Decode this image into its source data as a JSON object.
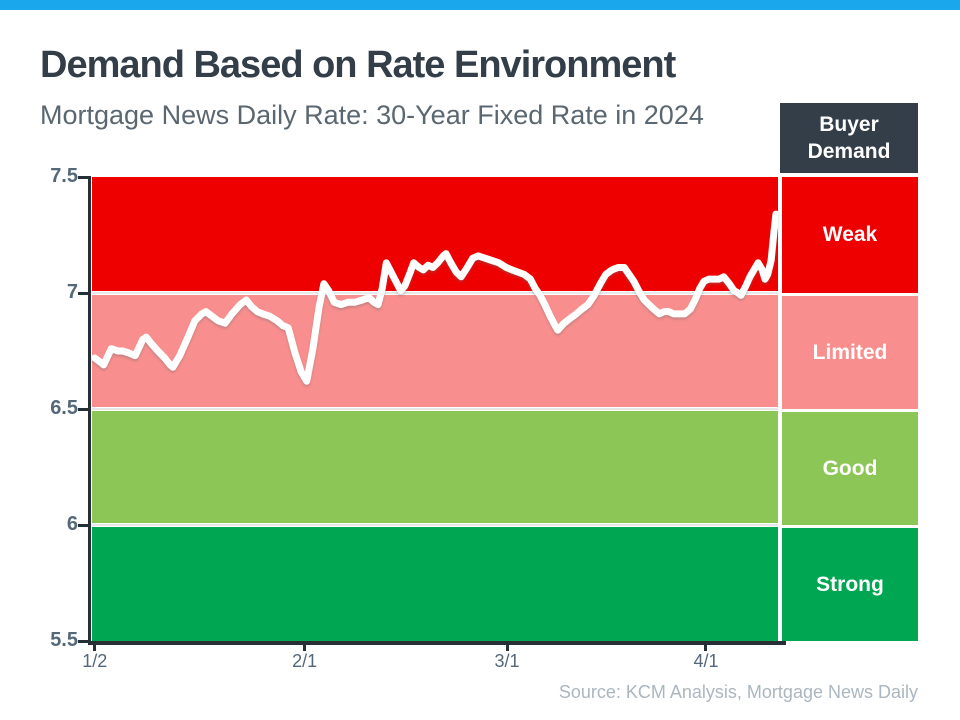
{
  "header": {
    "title": "Demand Based on Rate Environment",
    "subtitle": "Mortgage News Daily Rate: 30-Year Fixed Rate in 2024"
  },
  "legend": {
    "header": "Buyer Demand",
    "header_bg": "#333E48"
  },
  "footer": {
    "source": "Source: KCM Analysis, Mortgage News Daily"
  },
  "colors": {
    "top_bar": "#1AA7EC",
    "title_text": "#333E48",
    "subtitle_text": "#5B6770",
    "axis": "#262F36",
    "tick_label": "#55677A",
    "source_text": "#ABB6BF",
    "line": "#FFFFFF"
  },
  "chart_data": {
    "type": "line",
    "title": "Demand Based on Rate Environment",
    "subtitle": "Mortgage News Daily Rate: 30-Year Fixed Rate in 2024",
    "series_name": "30-Year Fixed Rate",
    "ylim": [
      5.5,
      7.5
    ],
    "grid": false,
    "legend_position": "right",
    "y_ticks": [
      {
        "label": "7.5",
        "value": 7.5
      },
      {
        "label": "7",
        "value": 7.0
      },
      {
        "label": "6.5",
        "value": 6.5
      },
      {
        "label": "6",
        "value": 6.0
      },
      {
        "label": "5.5",
        "value": 5.5
      }
    ],
    "x_ticks": [
      {
        "label": "1/2",
        "f": 0.004
      },
      {
        "label": "2/1",
        "f": 0.31
      },
      {
        "label": "3/1",
        "f": 0.605
      },
      {
        "label": "4/1",
        "f": 0.895
      }
    ],
    "bands": [
      {
        "label": "Weak",
        "from": 7.0,
        "to": 7.5,
        "color": "#EE0000"
      },
      {
        "label": "Limited",
        "from": 6.5,
        "to": 7.0,
        "color": "#F88E8E"
      },
      {
        "label": "Good",
        "from": 6.0,
        "to": 6.5,
        "color": "#8CC656"
      },
      {
        "label": "Strong",
        "from": 5.5,
        "to": 6.0,
        "color": "#00A651"
      }
    ],
    "line_color": "#FFFFFF",
    "points": [
      [
        0.004,
        6.72
      ],
      [
        0.013,
        6.7
      ],
      [
        0.017,
        6.69
      ],
      [
        0.028,
        6.76
      ],
      [
        0.038,
        6.75
      ],
      [
        0.045,
        6.75
      ],
      [
        0.055,
        6.74
      ],
      [
        0.063,
        6.73
      ],
      [
        0.074,
        6.8
      ],
      [
        0.079,
        6.81
      ],
      [
        0.087,
        6.78
      ],
      [
        0.096,
        6.75
      ],
      [
        0.106,
        6.72
      ],
      [
        0.114,
        6.69
      ],
      [
        0.118,
        6.68
      ],
      [
        0.128,
        6.73
      ],
      [
        0.14,
        6.81
      ],
      [
        0.15,
        6.88
      ],
      [
        0.16,
        6.91
      ],
      [
        0.166,
        6.92
      ],
      [
        0.175,
        6.9
      ],
      [
        0.184,
        6.88
      ],
      [
        0.194,
        6.87
      ],
      [
        0.204,
        6.91
      ],
      [
        0.216,
        6.95
      ],
      [
        0.225,
        6.97
      ],
      [
        0.233,
        6.94
      ],
      [
        0.241,
        6.92
      ],
      [
        0.249,
        6.91
      ],
      [
        0.259,
        6.9
      ],
      [
        0.27,
        6.88
      ],
      [
        0.278,
        6.86
      ],
      [
        0.286,
        6.85
      ],
      [
        0.296,
        6.74
      ],
      [
        0.305,
        6.66
      ],
      [
        0.313,
        6.62
      ],
      [
        0.322,
        6.76
      ],
      [
        0.331,
        6.94
      ],
      [
        0.338,
        7.04
      ],
      [
        0.345,
        7.01
      ],
      [
        0.353,
        6.96
      ],
      [
        0.363,
        6.95
      ],
      [
        0.373,
        6.96
      ],
      [
        0.383,
        6.96
      ],
      [
        0.394,
        6.97
      ],
      [
        0.404,
        6.98
      ],
      [
        0.411,
        6.96
      ],
      [
        0.417,
        6.95
      ],
      [
        0.423,
        7.02
      ],
      [
        0.429,
        7.13
      ],
      [
        0.436,
        7.09
      ],
      [
        0.443,
        7.05
      ],
      [
        0.45,
        7.01
      ],
      [
        0.456,
        7.03
      ],
      [
        0.464,
        7.09
      ],
      [
        0.469,
        7.13
      ],
      [
        0.477,
        7.11
      ],
      [
        0.483,
        7.1
      ],
      [
        0.49,
        7.12
      ],
      [
        0.497,
        7.11
      ],
      [
        0.504,
        7.13
      ],
      [
        0.512,
        7.16
      ],
      [
        0.516,
        7.17
      ],
      [
        0.523,
        7.13
      ],
      [
        0.531,
        7.09
      ],
      [
        0.538,
        7.07
      ],
      [
        0.547,
        7.11
      ],
      [
        0.555,
        7.15
      ],
      [
        0.563,
        7.16
      ],
      [
        0.573,
        7.15
      ],
      [
        0.583,
        7.14
      ],
      [
        0.593,
        7.13
      ],
      [
        0.604,
        7.11
      ],
      [
        0.612,
        7.1
      ],
      [
        0.621,
        7.09
      ],
      [
        0.63,
        7.08
      ],
      [
        0.639,
        7.06
      ],
      [
        0.646,
        7.02
      ],
      [
        0.653,
        6.99
      ],
      [
        0.66,
        6.95
      ],
      [
        0.668,
        6.9
      ],
      [
        0.675,
        6.86
      ],
      [
        0.679,
        6.84
      ],
      [
        0.688,
        6.87
      ],
      [
        0.697,
        6.89
      ],
      [
        0.706,
        6.91
      ],
      [
        0.714,
        6.93
      ],
      [
        0.723,
        6.95
      ],
      [
        0.732,
        6.99
      ],
      [
        0.741,
        7.04
      ],
      [
        0.749,
        7.08
      ],
      [
        0.758,
        7.1
      ],
      [
        0.767,
        7.11
      ],
      [
        0.776,
        7.11
      ],
      [
        0.783,
        7.08
      ],
      [
        0.79,
        7.05
      ],
      [
        0.797,
        7.01
      ],
      [
        0.805,
        6.97
      ],
      [
        0.812,
        6.95
      ],
      [
        0.819,
        6.93
      ],
      [
        0.827,
        6.91
      ],
      [
        0.834,
        6.92
      ],
      [
        0.841,
        6.92
      ],
      [
        0.848,
        6.91
      ],
      [
        0.857,
        6.91
      ],
      [
        0.864,
        6.91
      ],
      [
        0.872,
        6.93
      ],
      [
        0.879,
        6.97
      ],
      [
        0.886,
        7.02
      ],
      [
        0.892,
        7.05
      ],
      [
        0.899,
        7.06
      ],
      [
        0.907,
        7.06
      ],
      [
        0.914,
        7.06
      ],
      [
        0.921,
        7.07
      ],
      [
        0.929,
        7.04
      ],
      [
        0.936,
        7.01
      ],
      [
        0.942,
        7.0
      ],
      [
        0.946,
        6.99
      ],
      [
        0.953,
        7.03
      ],
      [
        0.959,
        7.07
      ],
      [
        0.965,
        7.1
      ],
      [
        0.971,
        7.13
      ],
      [
        0.977,
        7.1
      ],
      [
        0.981,
        7.06
      ],
      [
        0.985,
        7.08
      ],
      [
        0.99,
        7.14
      ],
      [
        0.994,
        7.26
      ],
      [
        0.997,
        7.34
      ]
    ]
  }
}
